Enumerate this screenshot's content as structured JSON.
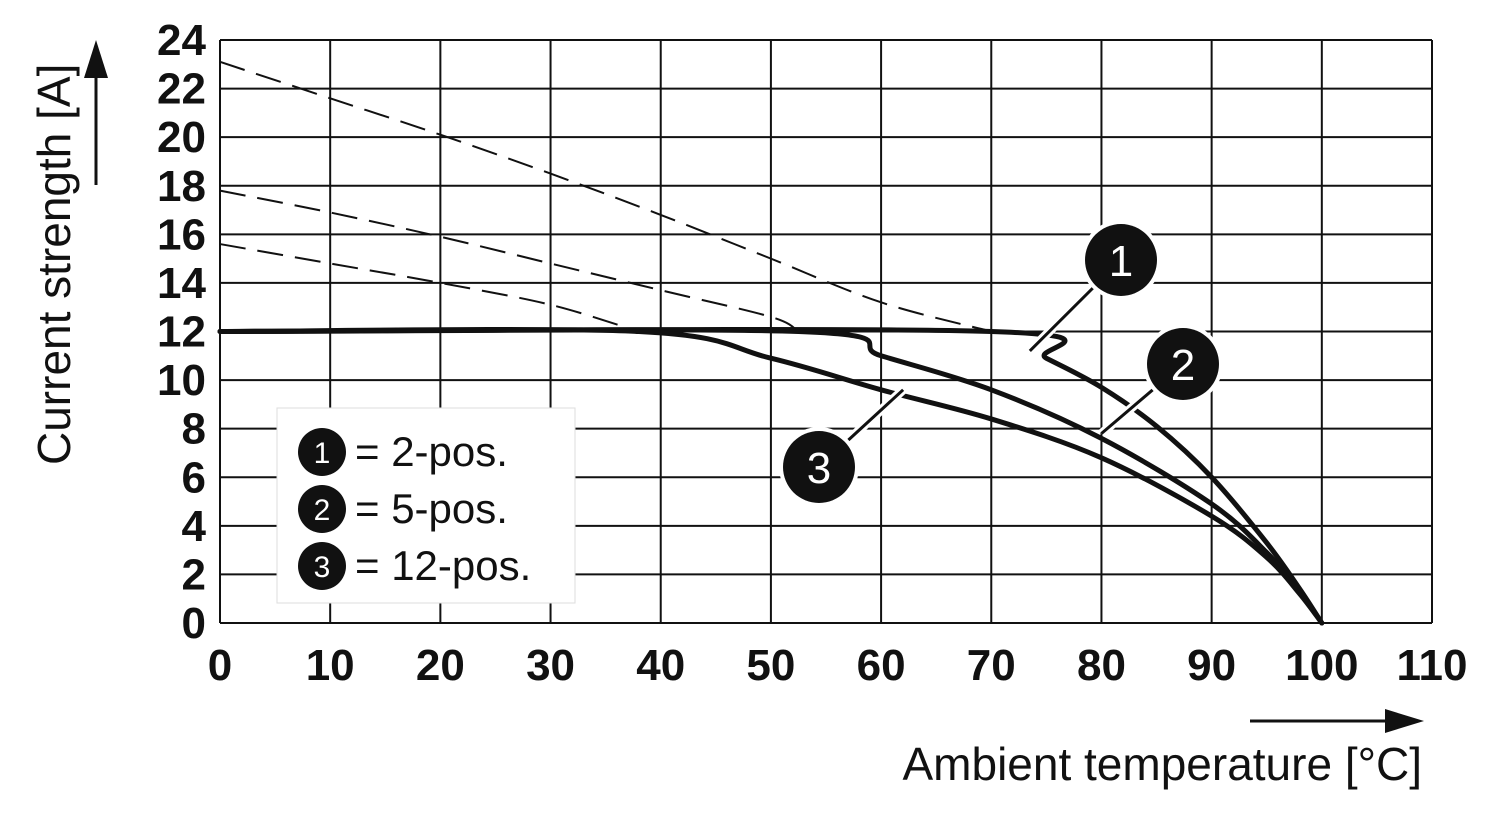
{
  "chart_data": {
    "type": "line",
    "xlabel": "Ambient temperature [°C]",
    "ylabel": "Current strength [A]",
    "xlim": [
      0,
      110
    ],
    "ylim": [
      0,
      24
    ],
    "x_ticks": [
      "0",
      "10",
      "20",
      "30",
      "40",
      "50",
      "60",
      "70",
      "80",
      "90",
      "100",
      "110"
    ],
    "y_ticks": [
      "0",
      "2",
      "4",
      "6",
      "8",
      "10",
      "12",
      "14",
      "16",
      "18",
      "20",
      "22",
      "24"
    ],
    "grid": true,
    "legend_position": "bottom-left",
    "legend": [
      {
        "marker": "1",
        "text": "= 2-pos."
      },
      {
        "marker": "2",
        "text": "= 5-pos."
      },
      {
        "marker": "3",
        "text": "= 12-pos."
      }
    ],
    "series": [
      {
        "marker": "1",
        "dashed": [
          [
            0,
            23.1
          ],
          [
            10,
            21.6
          ],
          [
            20,
            20.1
          ],
          [
            30,
            18.5
          ],
          [
            40,
            16.8
          ],
          [
            50,
            15.0
          ],
          [
            60,
            13.2
          ],
          [
            70,
            12.0
          ]
        ],
        "solid": [
          [
            0,
            12
          ],
          [
            70,
            12
          ],
          [
            75,
            10.9
          ],
          [
            80,
            9.7
          ],
          [
            85,
            8.1
          ],
          [
            90,
            6.0
          ],
          [
            95,
            3.3
          ],
          [
            98,
            1.4
          ],
          [
            100,
            0
          ]
        ]
      },
      {
        "marker": "2",
        "dashed": [
          [
            0,
            17.8
          ],
          [
            10,
            16.9
          ],
          [
            20,
            15.9
          ],
          [
            30,
            14.8
          ],
          [
            40,
            13.7
          ],
          [
            50,
            12.6
          ],
          [
            52.5,
            12.0
          ]
        ],
        "solid": [
          [
            0,
            12
          ],
          [
            52.5,
            12
          ],
          [
            60,
            11.0
          ],
          [
            70,
            9.6
          ],
          [
            80,
            7.6
          ],
          [
            90,
            4.9
          ],
          [
            95,
            2.9
          ],
          [
            98,
            1.3
          ],
          [
            100,
            0
          ]
        ]
      },
      {
        "marker": "3",
        "dashed": [
          [
            0,
            15.6
          ],
          [
            10,
            14.8
          ],
          [
            20,
            14.0
          ],
          [
            30,
            13.1
          ],
          [
            38,
            12.0
          ]
        ],
        "solid": [
          [
            0,
            12
          ],
          [
            38,
            12
          ],
          [
            50,
            10.9
          ],
          [
            60,
            9.6
          ],
          [
            70,
            8.4
          ],
          [
            80,
            6.8
          ],
          [
            90,
            4.4
          ],
          [
            95,
            2.7
          ],
          [
            98,
            1.2
          ],
          [
            100,
            0
          ]
        ]
      }
    ],
    "callouts": [
      {
        "marker": "1",
        "x": 73.5,
        "y": 11.2
      },
      {
        "marker": "2",
        "x": 80,
        "y": 7.8
      },
      {
        "marker": "3",
        "x": 62,
        "y": 9.6
      }
    ]
  }
}
